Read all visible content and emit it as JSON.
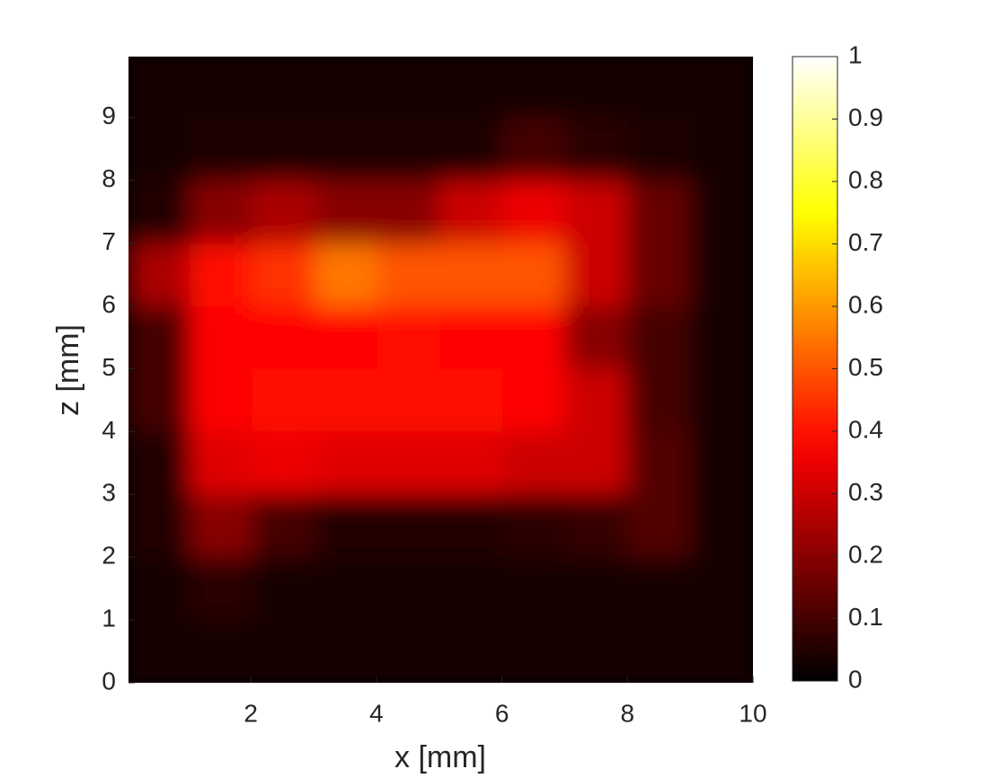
{
  "chart_data": {
    "type": "heatmap",
    "colormap": "hot",
    "xlabel": "x [mm]",
    "ylabel": "z [mm]",
    "xlim": [
      0.05,
      10
    ],
    "ylim": [
      0,
      9.97
    ],
    "xticks": [
      2,
      4,
      6,
      8,
      10
    ],
    "yticks": [
      0,
      1,
      2,
      3,
      4,
      5,
      6,
      7,
      8,
      9
    ],
    "clim": [
      0,
      1
    ],
    "cticks": [
      0,
      0.1,
      0.2,
      0.3,
      0.4,
      0.5,
      0.6,
      0.7,
      0.8,
      0.9,
      1
    ],
    "values": [
      [
        0.03,
        0.03,
        0.03,
        0.03,
        0.03,
        0.03,
        0.03,
        0.03,
        0.03,
        0.03
      ],
      [
        0.03,
        0.04,
        0.04,
        0.04,
        0.04,
        0.04,
        0.1,
        0.06,
        0.04,
        0.03
      ],
      [
        0.05,
        0.2,
        0.25,
        0.2,
        0.2,
        0.3,
        0.35,
        0.3,
        0.15,
        0.03
      ],
      [
        0.25,
        0.4,
        0.45,
        0.55,
        0.5,
        0.5,
        0.5,
        0.3,
        0.15,
        0.03
      ],
      [
        0.1,
        0.38,
        0.38,
        0.38,
        0.4,
        0.38,
        0.38,
        0.2,
        0.1,
        0.03
      ],
      [
        0.1,
        0.38,
        0.4,
        0.4,
        0.4,
        0.4,
        0.38,
        0.3,
        0.1,
        0.03
      ],
      [
        0.05,
        0.33,
        0.35,
        0.33,
        0.33,
        0.33,
        0.3,
        0.3,
        0.12,
        0.03
      ],
      [
        0.05,
        0.2,
        0.1,
        0.05,
        0.05,
        0.05,
        0.06,
        0.08,
        0.12,
        0.03
      ],
      [
        0.03,
        0.06,
        0.03,
        0.03,
        0.03,
        0.03,
        0.03,
        0.03,
        0.03,
        0.03
      ],
      [
        0.03,
        0.03,
        0.03,
        0.03,
        0.03,
        0.03,
        0.03,
        0.03,
        0.03,
        0.03
      ]
    ]
  }
}
